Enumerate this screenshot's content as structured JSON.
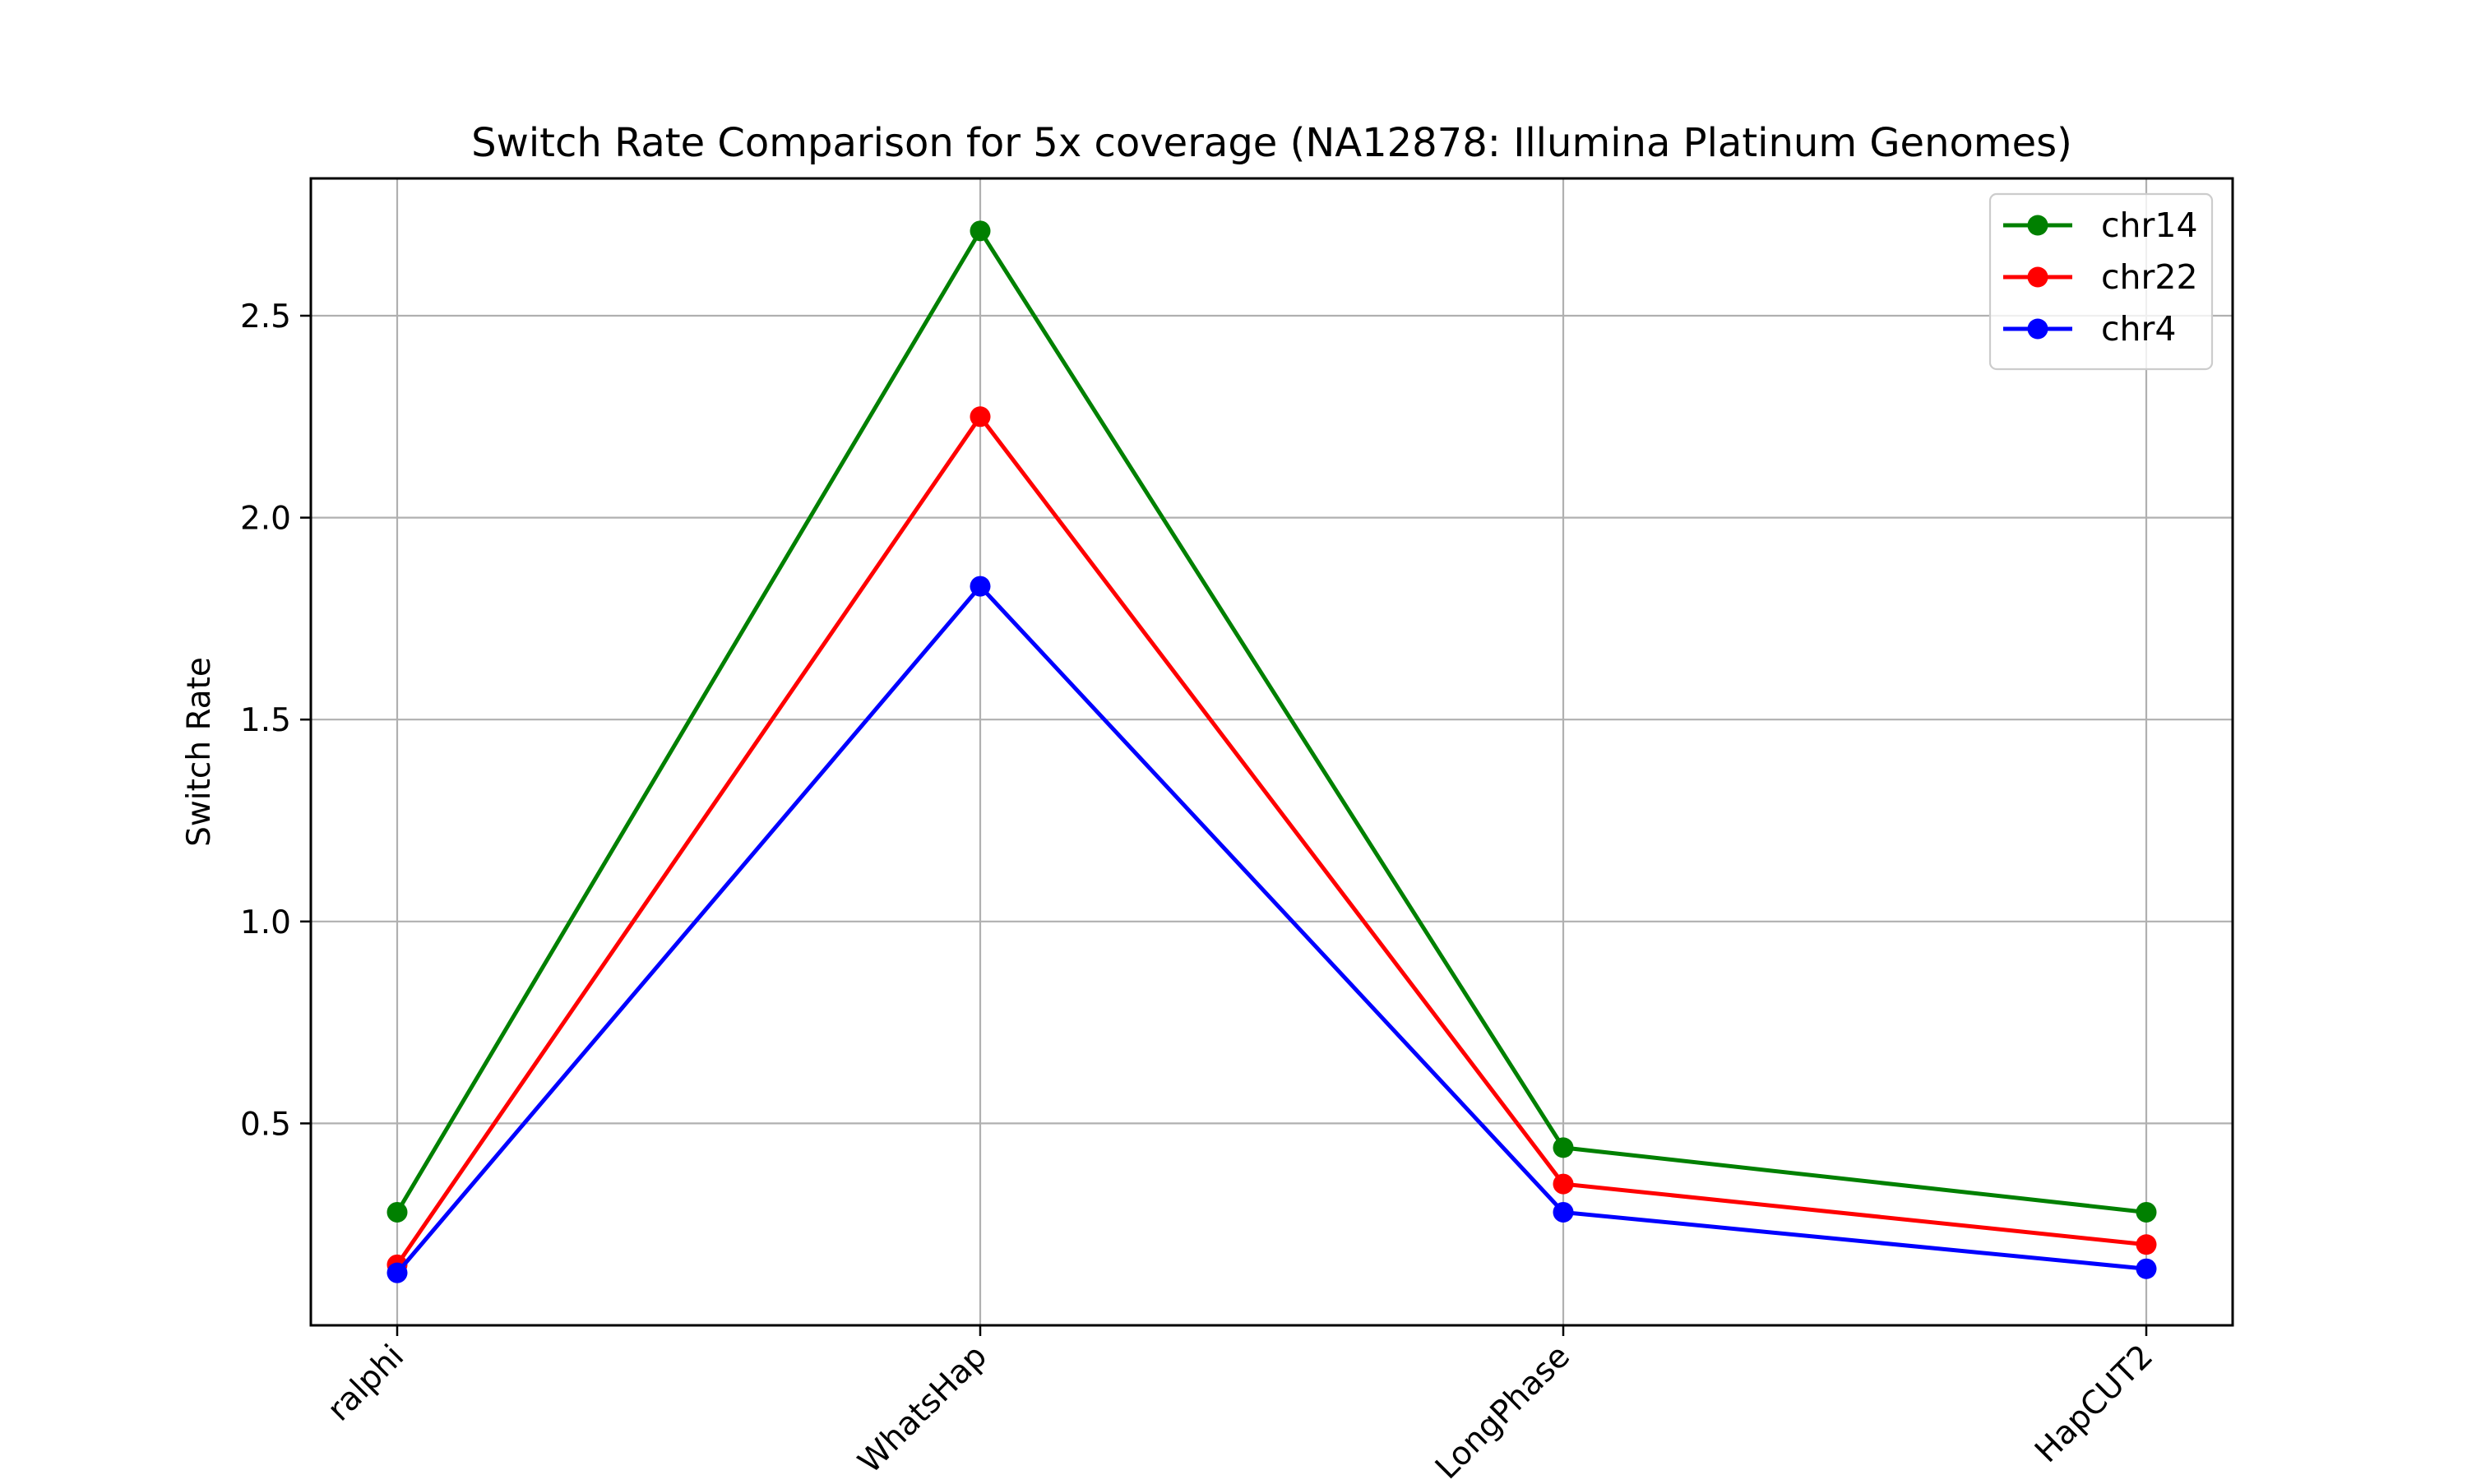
{
  "chart_data": {
    "type": "line",
    "title": "Switch Rate Comparison for 5x coverage (NA12878: Illumina Platinum Genomes)",
    "xlabel": "",
    "ylabel": "Switch Rate",
    "categories": [
      "ralphi",
      "WhatsHap",
      "LongPhase",
      "HapCUT2"
    ],
    "ylim": [
      0.0,
      2.84
    ],
    "yticks": [
      0.5,
      1.0,
      1.5,
      2.0,
      2.5
    ],
    "ytick_labels": [
      "0.5",
      "1.0",
      "1.5",
      "2.0",
      "2.5"
    ],
    "grid": true,
    "legend_position": "top-right",
    "series": [
      {
        "name": "chr14",
        "color": "#008000",
        "values": [
          0.28,
          2.71,
          0.44,
          0.28
        ]
      },
      {
        "name": "chr22",
        "color": "#ff0000",
        "values": [
          0.15,
          2.25,
          0.35,
          0.2
        ]
      },
      {
        "name": "chr4",
        "color": "#0000ff",
        "values": [
          0.13,
          1.83,
          0.28,
          0.14
        ]
      }
    ]
  }
}
